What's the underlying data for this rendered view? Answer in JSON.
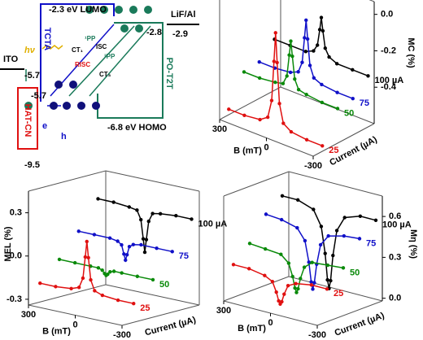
{
  "diagram": {
    "lumo": "-2.3 eV LUMO",
    "tcta": "TCTA",
    "po_level": "-2.8",
    "cathode": "LiF/Al",
    "cathode_level": "-2.9",
    "anode": "ITO",
    "anode_level": "-5.7",
    "tcta_homo": "-5.7",
    "hatcn": "HAT-CN",
    "hatcn_level": "-9.5",
    "electron": "e",
    "hole": "h",
    "homo": "-6.8 eV HOMO",
    "pot2t": "PO-T2T",
    "photon": "hν",
    "ct1": "CT₁",
    "pp1": "¹PP",
    "isc": "ISC",
    "pp3": "³PP",
    "risc": "RISC",
    "ct3": "CT₃"
  },
  "chart_data": [
    {
      "type": "waterfall",
      "ylabel": "MC (%)",
      "xlabel": "B (mT)",
      "zlabel": "Current (µA)",
      "x": [
        -300,
        -200,
        -100,
        -50,
        -25,
        -10,
        0,
        10,
        25,
        50,
        100,
        200,
        300
      ],
      "xlim": [
        -300,
        300
      ],
      "xticks": [
        300,
        0,
        -300
      ],
      "ylim": [
        -0.6,
        0.07
      ],
      "yticks": [
        {
          "value": 0,
          "label": "0.0"
        },
        -0.2,
        -0.4
      ],
      "series": [
        {
          "name": "100 µA",
          "color": "#000000",
          "values": [
            -0.32,
            -0.32,
            -0.32,
            -0.3,
            -0.26,
            -0.17,
            -0.1,
            -0.17,
            -0.26,
            -0.3,
            -0.32,
            -0.32,
            -0.32
          ]
        },
        {
          "name": "75",
          "color": "#1010c8",
          "values": [
            -0.4,
            -0.4,
            -0.39,
            -0.37,
            -0.31,
            -0.17,
            -0.07,
            -0.17,
            -0.31,
            -0.37,
            -0.39,
            -0.4,
            -0.4
          ]
        },
        {
          "name": "50",
          "color": "#0a8a0a",
          "values": [
            -0.41,
            -0.41,
            -0.4,
            -0.39,
            -0.34,
            -0.22,
            -0.14,
            -0.22,
            -0.34,
            -0.39,
            -0.4,
            -0.41,
            -0.41
          ]
        },
        {
          "name": "25",
          "color": "#e01010",
          "values": [
            -0.57,
            -0.57,
            -0.56,
            -0.53,
            -0.43,
            -0.21,
            -0.05,
            -0.21,
            -0.43,
            -0.53,
            -0.56,
            -0.57,
            -0.57
          ]
        }
      ]
    },
    {
      "type": "waterfall",
      "ylabel": "MEL (%)",
      "xlabel": "B (mT)",
      "zlabel": "Current (µA)",
      "x": [
        -300,
        -200,
        -100,
        -50,
        -25,
        -10,
        0,
        10,
        25,
        50,
        100,
        200,
        300
      ],
      "xlim": [
        -300,
        300
      ],
      "xticks": [
        300,
        0,
        -300
      ],
      "ylim": [
        -0.34,
        0.45
      ],
      "yticks": [
        0.3,
        {
          "value": 0,
          "label": "0.0"
        },
        -0.3
      ],
      "series": [
        {
          "name": "100 µA",
          "color": "#000000",
          "values": [
            0.27,
            0.27,
            0.26,
            0.25,
            0.19,
            0.06,
            -0.03,
            0.06,
            0.19,
            0.25,
            0.26,
            0.27,
            0.27
          ]
        },
        {
          "name": "75",
          "color": "#1010c8",
          "values": [
            0.08,
            0.08,
            0.08,
            0.07,
            0.05,
            -0.01,
            -0.05,
            -0.01,
            0.05,
            0.07,
            0.08,
            0.08,
            0.08
          ]
        },
        {
          "name": "50",
          "color": "#0a8a0a",
          "values": [
            -0.08,
            -0.08,
            -0.08,
            -0.08,
            -0.09,
            -0.11,
            -0.12,
            -0.11,
            -0.09,
            -0.08,
            -0.08,
            -0.08,
            -0.08
          ]
        },
        {
          "name": "25",
          "color": "#e01010",
          "values": [
            -0.21,
            -0.21,
            -0.2,
            -0.18,
            -0.11,
            0.04,
            0.15,
            0.04,
            -0.11,
            -0.18,
            -0.2,
            -0.21,
            -0.21
          ]
        }
      ]
    },
    {
      "type": "waterfall",
      "ylabel": "Mη (%)",
      "xlabel": "B (mT)",
      "zlabel": "Current (µA)",
      "x": [
        -300,
        -200,
        -100,
        -50,
        -25,
        -10,
        0,
        10,
        25,
        50,
        100,
        200,
        300
      ],
      "xlim": [
        -300,
        300
      ],
      "xticks": [
        300,
        0,
        -300
      ],
      "ylim": [
        -0.02,
        0.75
      ],
      "yticks": [
        {
          "value": 0,
          "label": "0.0"
        },
        0.3,
        0.6
      ],
      "series": [
        {
          "name": "100 µA",
          "color": "#000000",
          "values": [
            0.59,
            0.59,
            0.55,
            0.44,
            0.25,
            0.06,
            0.0,
            0.06,
            0.25,
            0.44,
            0.55,
            0.59,
            0.59
          ]
        },
        {
          "name": "75",
          "color": "#1010c8",
          "values": [
            0.5,
            0.49,
            0.46,
            0.38,
            0.23,
            0.09,
            0.04,
            0.09,
            0.23,
            0.38,
            0.46,
            0.49,
            0.5
          ]
        },
        {
          "name": "50",
          "color": "#0a8a0a",
          "values": [
            0.33,
            0.32,
            0.31,
            0.26,
            0.17,
            0.09,
            0.06,
            0.09,
            0.17,
            0.26,
            0.31,
            0.32,
            0.33
          ]
        },
        {
          "name": "25",
          "color": "#e01010",
          "values": [
            0.22,
            0.22,
            0.2,
            0.17,
            0.1,
            0.04,
            0.02,
            0.04,
            0.1,
            0.17,
            0.2,
            0.22,
            0.22
          ]
        }
      ]
    }
  ]
}
